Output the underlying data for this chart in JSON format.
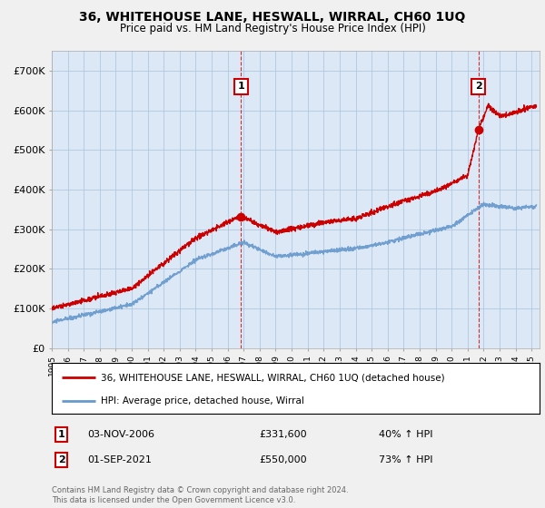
{
  "title": "36, WHITEHOUSE LANE, HESWALL, WIRRAL, CH60 1UQ",
  "subtitle": "Price paid vs. HM Land Registry's House Price Index (HPI)",
  "legend_label_red": "36, WHITEHOUSE LANE, HESWALL, WIRRAL, CH60 1UQ (detached house)",
  "legend_label_blue": "HPI: Average price, detached house, Wirral",
  "annotation1": {
    "num": "1",
    "date": "03-NOV-2006",
    "price": "£331,600",
    "pct": "40% ↑ HPI"
  },
  "annotation2": {
    "num": "2",
    "date": "01-SEP-2021",
    "price": "£550,000",
    "pct": "73% ↑ HPI"
  },
  "footer": "Contains HM Land Registry data © Crown copyright and database right 2024.\nThis data is licensed under the Open Government Licence v3.0.",
  "ylim": [
    0,
    750000
  ],
  "yticks": [
    0,
    100000,
    200000,
    300000,
    400000,
    500000,
    600000,
    700000
  ],
  "ytick_labels": [
    "£0",
    "£100K",
    "£200K",
    "£300K",
    "£400K",
    "£500K",
    "£600K",
    "£700K"
  ],
  "background_color": "#f0f0f0",
  "plot_bg_color": "#dce8f5",
  "grid_color": "#b0c8e0",
  "red_color": "#cc0000",
  "blue_color": "#6699cc",
  "vline_color": "#cc0000",
  "sale1_x": 2006.84,
  "sale1_y": 331600,
  "sale2_x": 2021.67,
  "sale2_y": 550000,
  "xmin": 1995.0,
  "xmax": 2025.5
}
